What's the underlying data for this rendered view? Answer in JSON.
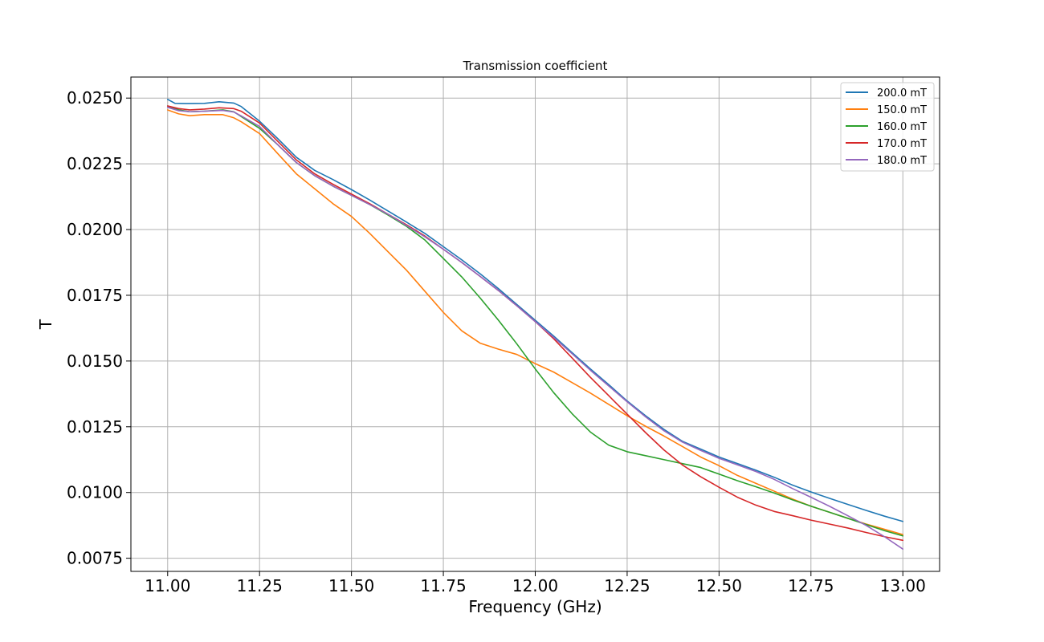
{
  "chart_data": {
    "type": "line",
    "title": "Transmission coefficient",
    "xlabel": "Frequency (GHz)",
    "ylabel": "T",
    "xlim": [
      10.9,
      13.1
    ],
    "ylim": [
      0.007,
      0.0258
    ],
    "xticks": [
      "11.00",
      "11.25",
      "11.50",
      "11.75",
      "12.00",
      "12.25",
      "12.50",
      "12.75",
      "13.00"
    ],
    "yticks": [
      "0.0075",
      "0.0100",
      "0.0125",
      "0.0150",
      "0.0175",
      "0.0200",
      "0.0225",
      "0.0250"
    ],
    "grid": true,
    "legend_position": "top-right",
    "series": [
      {
        "name": "200.0 mT",
        "color": "#1f77b4",
        "points": [
          [
            11.0,
            0.02495
          ],
          [
            11.02,
            0.0248
          ],
          [
            11.05,
            0.02479
          ],
          [
            11.1,
            0.0248
          ],
          [
            11.14,
            0.02486
          ],
          [
            11.18,
            0.02481
          ],
          [
            11.2,
            0.02468
          ],
          [
            11.25,
            0.02412
          ],
          [
            11.3,
            0.02345
          ],
          [
            11.35,
            0.02275
          ],
          [
            11.4,
            0.02225
          ],
          [
            11.45,
            0.0219
          ],
          [
            11.5,
            0.02152
          ],
          [
            11.55,
            0.02112
          ],
          [
            11.6,
            0.0207
          ],
          [
            11.65,
            0.02028
          ],
          [
            11.7,
            0.01985
          ],
          [
            11.75,
            0.01935
          ],
          [
            11.8,
            0.01885
          ],
          [
            11.85,
            0.01832
          ],
          [
            11.9,
            0.01775
          ],
          [
            11.95,
            0.01715
          ],
          [
            12.0,
            0.01655
          ],
          [
            12.05,
            0.01595
          ],
          [
            12.1,
            0.01532
          ],
          [
            12.15,
            0.0147
          ],
          [
            12.2,
            0.0141
          ],
          [
            12.25,
            0.01348
          ],
          [
            12.3,
            0.01292
          ],
          [
            12.35,
            0.0124
          ],
          [
            12.4,
            0.01195
          ],
          [
            12.45,
            0.01165
          ],
          [
            12.5,
            0.01135
          ],
          [
            12.55,
            0.0111
          ],
          [
            12.6,
            0.01085
          ],
          [
            12.65,
            0.01058
          ],
          [
            12.7,
            0.01028
          ],
          [
            12.75,
            0.01002
          ],
          [
            12.8,
            0.00978
          ],
          [
            12.85,
            0.00955
          ],
          [
            12.9,
            0.00932
          ],
          [
            12.95,
            0.0091
          ],
          [
            13.0,
            0.0089
          ]
        ]
      },
      {
        "name": "150.0 mT",
        "color": "#ff7f0e",
        "points": [
          [
            11.0,
            0.02455
          ],
          [
            11.03,
            0.0244
          ],
          [
            11.06,
            0.02433
          ],
          [
            11.1,
            0.02437
          ],
          [
            11.15,
            0.02437
          ],
          [
            11.18,
            0.02425
          ],
          [
            11.2,
            0.0241
          ],
          [
            11.25,
            0.02365
          ],
          [
            11.3,
            0.02288
          ],
          [
            11.35,
            0.02212
          ],
          [
            11.4,
            0.02155
          ],
          [
            11.45,
            0.02098
          ],
          [
            11.5,
            0.0205
          ],
          [
            11.55,
            0.01985
          ],
          [
            11.6,
            0.01915
          ],
          [
            11.65,
            0.01845
          ],
          [
            11.7,
            0.01765
          ],
          [
            11.75,
            0.01685
          ],
          [
            11.8,
            0.01615
          ],
          [
            11.85,
            0.01568
          ],
          [
            11.9,
            0.01545
          ],
          [
            11.95,
            0.01525
          ],
          [
            12.0,
            0.0149
          ],
          [
            12.05,
            0.01458
          ],
          [
            12.1,
            0.01418
          ],
          [
            12.15,
            0.01378
          ],
          [
            12.2,
            0.01335
          ],
          [
            12.25,
            0.01292
          ],
          [
            12.3,
            0.01252
          ],
          [
            12.35,
            0.01215
          ],
          [
            12.4,
            0.01175
          ],
          [
            12.45,
            0.01135
          ],
          [
            12.5,
            0.01102
          ],
          [
            12.55,
            0.01065
          ],
          [
            12.6,
            0.01035
          ],
          [
            12.65,
            0.01005
          ],
          [
            12.7,
            0.00975
          ],
          [
            12.75,
            0.00948
          ],
          [
            12.8,
            0.00925
          ],
          [
            12.85,
            0.00902
          ],
          [
            12.9,
            0.0088
          ],
          [
            12.95,
            0.0086
          ],
          [
            13.0,
            0.0084
          ]
        ]
      },
      {
        "name": "160.0 mT",
        "color": "#2ca02c",
        "points": [
          [
            11.0,
            0.0247
          ],
          [
            11.03,
            0.02455
          ],
          [
            11.06,
            0.02448
          ],
          [
            11.1,
            0.0245
          ],
          [
            11.15,
            0.02455
          ],
          [
            11.18,
            0.02448
          ],
          [
            11.2,
            0.0243
          ],
          [
            11.25,
            0.02385
          ],
          [
            11.3,
            0.02322
          ],
          [
            11.35,
            0.02255
          ],
          [
            11.4,
            0.02205
          ],
          [
            11.45,
            0.02165
          ],
          [
            11.5,
            0.0213
          ],
          [
            11.55,
            0.02095
          ],
          [
            11.6,
            0.02055
          ],
          [
            11.65,
            0.02012
          ],
          [
            11.7,
            0.0196
          ],
          [
            11.75,
            0.0189
          ],
          [
            11.8,
            0.0182
          ],
          [
            11.85,
            0.0174
          ],
          [
            11.9,
            0.01655
          ],
          [
            11.95,
            0.01565
          ],
          [
            12.0,
            0.0147
          ],
          [
            12.05,
            0.0138
          ],
          [
            12.1,
            0.013
          ],
          [
            12.15,
            0.0123
          ],
          [
            12.2,
            0.0118
          ],
          [
            12.25,
            0.01155
          ],
          [
            12.3,
            0.0114
          ],
          [
            12.35,
            0.01125
          ],
          [
            12.4,
            0.0111
          ],
          [
            12.45,
            0.01095
          ],
          [
            12.5,
            0.0107
          ],
          [
            12.55,
            0.01045
          ],
          [
            12.6,
            0.01022
          ],
          [
            12.65,
            0.00998
          ],
          [
            12.7,
            0.00972
          ],
          [
            12.75,
            0.00948
          ],
          [
            12.8,
            0.00925
          ],
          [
            12.85,
            0.00902
          ],
          [
            12.9,
            0.00878
          ],
          [
            12.95,
            0.00855
          ],
          [
            13.0,
            0.00835
          ]
        ]
      },
      {
        "name": "170.0 mT",
        "color": "#d62728",
        "points": [
          [
            11.0,
            0.0247
          ],
          [
            11.03,
            0.0246
          ],
          [
            11.06,
            0.02455
          ],
          [
            11.1,
            0.02458
          ],
          [
            11.14,
            0.02463
          ],
          [
            11.18,
            0.0246
          ],
          [
            11.2,
            0.0245
          ],
          [
            11.25,
            0.02405
          ],
          [
            11.3,
            0.02335
          ],
          [
            11.35,
            0.02265
          ],
          [
            11.4,
            0.02212
          ],
          [
            11.45,
            0.02172
          ],
          [
            11.5,
            0.02135
          ],
          [
            11.55,
            0.02098
          ],
          [
            11.6,
            0.02058
          ],
          [
            11.65,
            0.02018
          ],
          [
            11.7,
            0.01975
          ],
          [
            11.75,
            0.01925
          ],
          [
            11.8,
            0.01875
          ],
          [
            11.85,
            0.01822
          ],
          [
            11.9,
            0.01768
          ],
          [
            11.95,
            0.0171
          ],
          [
            12.0,
            0.0165
          ],
          [
            12.05,
            0.01585
          ],
          [
            12.1,
            0.01512
          ],
          [
            12.15,
            0.01438
          ],
          [
            12.2,
            0.01368
          ],
          [
            12.25,
            0.01298
          ],
          [
            12.3,
            0.01228
          ],
          [
            12.35,
            0.01162
          ],
          [
            12.4,
            0.01105
          ],
          [
            12.45,
            0.0106
          ],
          [
            12.5,
            0.0102
          ],
          [
            12.55,
            0.00982
          ],
          [
            12.6,
            0.00952
          ],
          [
            12.65,
            0.00928
          ],
          [
            12.7,
            0.00912
          ],
          [
            12.75,
            0.00895
          ],
          [
            12.8,
            0.0088
          ],
          [
            12.85,
            0.00865
          ],
          [
            12.9,
            0.00848
          ],
          [
            12.95,
            0.00832
          ],
          [
            13.0,
            0.00818
          ]
        ]
      },
      {
        "name": "180.0 mT",
        "color": "#9467bd",
        "points": [
          [
            11.0,
            0.02465
          ],
          [
            11.03,
            0.02452
          ],
          [
            11.06,
            0.02448
          ],
          [
            11.1,
            0.0245
          ],
          [
            11.15,
            0.02453
          ],
          [
            11.18,
            0.02447
          ],
          [
            11.2,
            0.02432
          ],
          [
            11.25,
            0.02392
          ],
          [
            11.3,
            0.02322
          ],
          [
            11.35,
            0.02255
          ],
          [
            11.4,
            0.02205
          ],
          [
            11.45,
            0.02165
          ],
          [
            11.5,
            0.0213
          ],
          [
            11.55,
            0.02095
          ],
          [
            11.6,
            0.02058
          ],
          [
            11.65,
            0.02015
          ],
          [
            11.7,
            0.01972
          ],
          [
            11.75,
            0.01925
          ],
          [
            11.8,
            0.01875
          ],
          [
            11.85,
            0.01822
          ],
          [
            11.9,
            0.01768
          ],
          [
            11.95,
            0.0171
          ],
          [
            12.0,
            0.0165
          ],
          [
            12.05,
            0.0159
          ],
          [
            12.1,
            0.01528
          ],
          [
            12.15,
            0.01465
          ],
          [
            12.2,
            0.01405
          ],
          [
            12.25,
            0.01345
          ],
          [
            12.3,
            0.01288
          ],
          [
            12.35,
            0.01235
          ],
          [
            12.4,
            0.01192
          ],
          [
            12.45,
            0.0116
          ],
          [
            12.5,
            0.0113
          ],
          [
            12.55,
            0.01105
          ],
          [
            12.6,
            0.0108
          ],
          [
            12.65,
            0.0105
          ],
          [
            12.7,
            0.01015
          ],
          [
            12.75,
            0.00982
          ],
          [
            12.8,
            0.00948
          ],
          [
            12.85,
            0.00912
          ],
          [
            12.9,
            0.00875
          ],
          [
            12.95,
            0.00832
          ],
          [
            13.0,
            0.00785
          ]
        ]
      }
    ]
  }
}
